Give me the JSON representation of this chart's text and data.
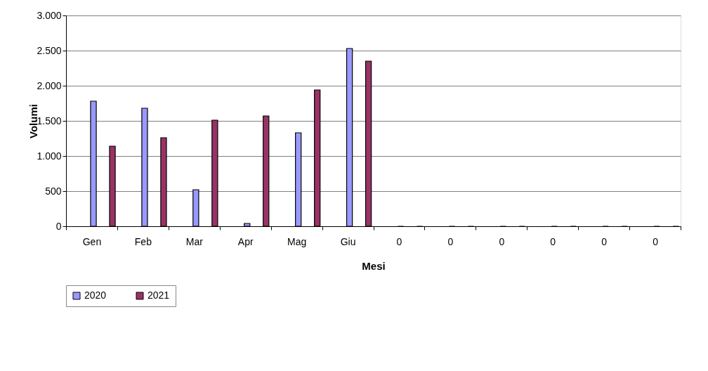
{
  "chart_data": {
    "type": "bar",
    "xlabel": "Mesi",
    "ylabel": "Volumi",
    "categories": [
      "Gen",
      "Feb",
      "Mar",
      "Apr",
      "Mag",
      "Giu",
      "0",
      "0",
      "0",
      "0",
      "0",
      "0"
    ],
    "series": [
      {
        "name": "2020",
        "color": "#9999ff",
        "values": [
          1780,
          1680,
          520,
          40,
          1330,
          2530,
          0,
          0,
          0,
          0,
          0,
          0
        ]
      },
      {
        "name": "2021",
        "color": "#993366",
        "values": [
          1140,
          1260,
          1510,
          1570,
          1940,
          2350,
          0,
          0,
          0,
          0,
          0,
          0
        ]
      }
    ],
    "ylim": [
      0,
      3000
    ],
    "yticks": [
      0,
      500,
      {
        "value": 1000,
        "label": "1.000"
      },
      {
        "value": 1500,
        "label": "1.500"
      },
      {
        "value": 2000,
        "label": "2.000"
      },
      {
        "value": 2500,
        "label": "2.500"
      },
      {
        "value": 3000,
        "label": "3.000"
      }
    ],
    "grid": "y",
    "legend": "bottom"
  }
}
